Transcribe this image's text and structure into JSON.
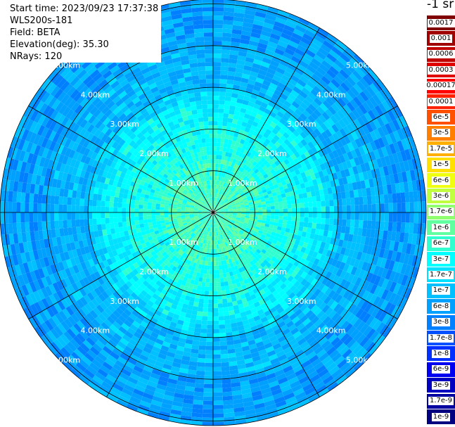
{
  "header": {
    "start_time": "Start time: 2023/09/23 17:37:38",
    "instrument": "WLS200s-181",
    "field": "Field: BETA",
    "elevation": "Elevation(deg): 35.30",
    "nrays": "NRays: 120"
  },
  "colorbar": {
    "title": "-1 sr",
    "entries": [
      {
        "label": "0.0017",
        "color": "#800000"
      },
      {
        "label": "0.001",
        "color": "#a00000"
      },
      {
        "label": "0.0006",
        "color": "#c00000"
      },
      {
        "label": "0.0003",
        "color": "#e00000"
      },
      {
        "label": "0.00017",
        "color": "#ff0000"
      },
      {
        "label": "0.0001",
        "color": "#ff2000"
      },
      {
        "label": "6e-5",
        "color": "#ff5000"
      },
      {
        "label": "3e-5",
        "color": "#ff8000"
      },
      {
        "label": "1.7e-5",
        "color": "#ffaf00"
      },
      {
        "label": "1e-5",
        "color": "#ffe000"
      },
      {
        "label": "6e-6",
        "color": "#f0ff10"
      },
      {
        "label": "3e-6",
        "color": "#c0ff40"
      },
      {
        "label": "1.7e-6",
        "color": "#90ff70"
      },
      {
        "label": "1e-6",
        "color": "#60ffa0"
      },
      {
        "label": "6e-7",
        "color": "#30ffd0"
      },
      {
        "label": "3e-7",
        "color": "#00ffff"
      },
      {
        "label": "1.7e-7",
        "color": "#00e0ff"
      },
      {
        "label": "1e-7",
        "color": "#00c0ff"
      },
      {
        "label": "6e-8",
        "color": "#00a0ff"
      },
      {
        "label": "3e-8",
        "color": "#0080ff"
      },
      {
        "label": "1.7e-8",
        "color": "#0050ff"
      },
      {
        "label": "1e-8",
        "color": "#0030ff"
      },
      {
        "label": "6e-9",
        "color": "#0000f0"
      },
      {
        "label": "3e-9",
        "color": "#0000c0"
      },
      {
        "label": "1.7e-9",
        "color": "#0000a0"
      },
      {
        "label": "1e-9",
        "color": "#000080"
      }
    ]
  },
  "range_rings": [
    "1.00km",
    "2.00km",
    "3.00km",
    "4.00km",
    "5.00km"
  ],
  "ppi": {
    "max_range_km": 5.05,
    "ring_values_km": [
      1,
      2,
      3,
      4,
      5
    ],
    "spoke_count": 12
  }
}
